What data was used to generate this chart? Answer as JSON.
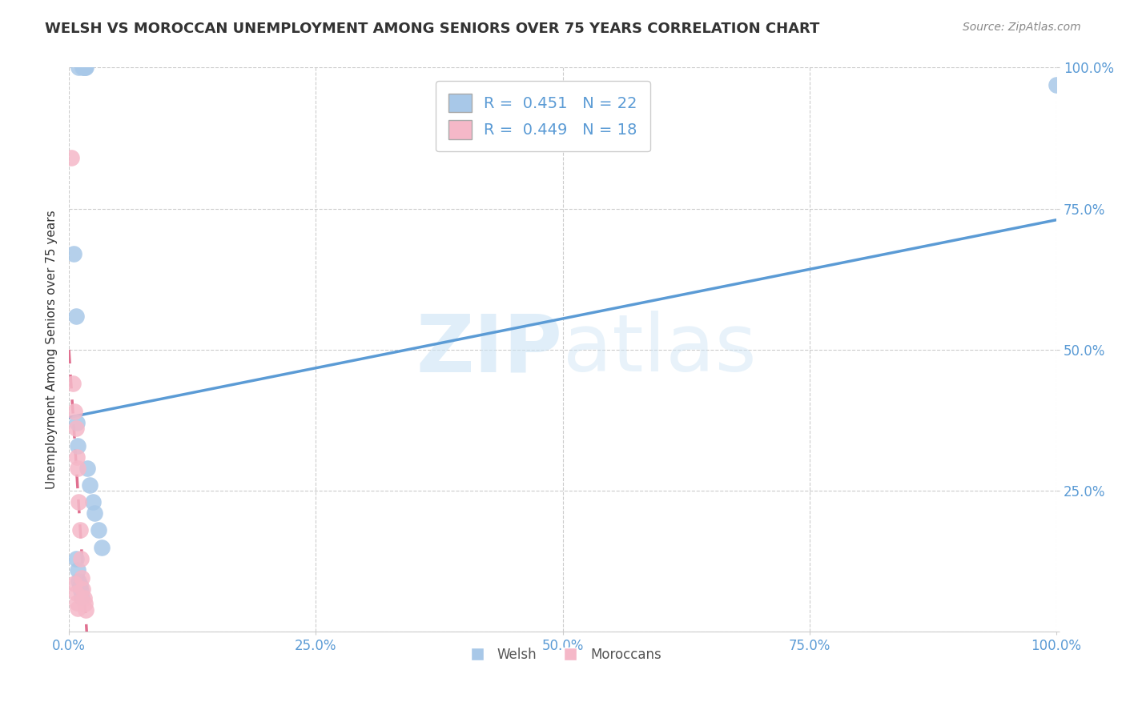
{
  "title": "WELSH VS MOROCCAN UNEMPLOYMENT AMONG SENIORS OVER 75 YEARS CORRELATION CHART",
  "source_text": "Source: ZipAtlas.com",
  "ylabel": "Unemployment Among Seniors over 75 years",
  "watermark_zip": "ZIP",
  "watermark_atlas": "atlas",
  "welsh_R": 0.451,
  "welsh_N": 22,
  "moroccan_R": 0.449,
  "moroccan_N": 18,
  "welsh_color": "#a8c8e8",
  "moroccan_color": "#f5b8c8",
  "welsh_line_color": "#5b9bd5",
  "moroccan_line_color": "#e07090",
  "background_color": "#ffffff",
  "grid_color": "#cccccc",
  "axis_label_color": "#5b9bd5",
  "title_color": "#333333",
  "welsh_x": [
    0.01,
    0.014,
    0.015,
    0.016,
    0.017,
    0.005,
    0.007,
    0.008,
    0.009,
    0.019,
    0.021,
    0.024,
    0.026,
    0.03,
    0.033,
    0.007,
    0.009,
    0.01,
    0.011,
    0.012,
    0.013,
    1.0
  ],
  "welsh_y": [
    1.0,
    1.0,
    1.0,
    1.0,
    1.0,
    0.67,
    0.56,
    0.37,
    0.33,
    0.29,
    0.26,
    0.23,
    0.21,
    0.18,
    0.15,
    0.13,
    0.11,
    0.09,
    0.082,
    0.072,
    0.062,
    0.97
  ],
  "moroccan_x": [
    0.002,
    0.004,
    0.006,
    0.007,
    0.008,
    0.009,
    0.01,
    0.011,
    0.012,
    0.013,
    0.014,
    0.015,
    0.016,
    0.017,
    0.006,
    0.007,
    0.008,
    0.009
  ],
  "moroccan_y": [
    0.84,
    0.44,
    0.39,
    0.36,
    0.31,
    0.29,
    0.23,
    0.18,
    0.13,
    0.095,
    0.075,
    0.06,
    0.05,
    0.038,
    0.085,
    0.068,
    0.052,
    0.042
  ],
  "welsh_line_x": [
    0.0,
    1.0
  ],
  "welsh_line_y": [
    0.38,
    0.73
  ],
  "moroccan_line_x": [
    0.0,
    0.018
  ],
  "moroccan_line_y": [
    0.5,
    0.0
  ],
  "xlim": [
    0.0,
    1.0
  ],
  "ylim": [
    0.0,
    1.0
  ],
  "xticks": [
    0.0,
    0.25,
    0.5,
    0.75,
    1.0
  ],
  "yticks": [
    0.0,
    0.25,
    0.5,
    0.75,
    1.0
  ],
  "xticklabels": [
    "0.0%",
    "25.0%",
    "50.0%",
    "75.0%",
    "100.0%"
  ],
  "yticklabels": [
    "",
    "25.0%",
    "50.0%",
    "75.0%",
    "100.0%"
  ],
  "legend_welsh_label": "Welsh",
  "legend_moroccan_label": "Moroccans"
}
